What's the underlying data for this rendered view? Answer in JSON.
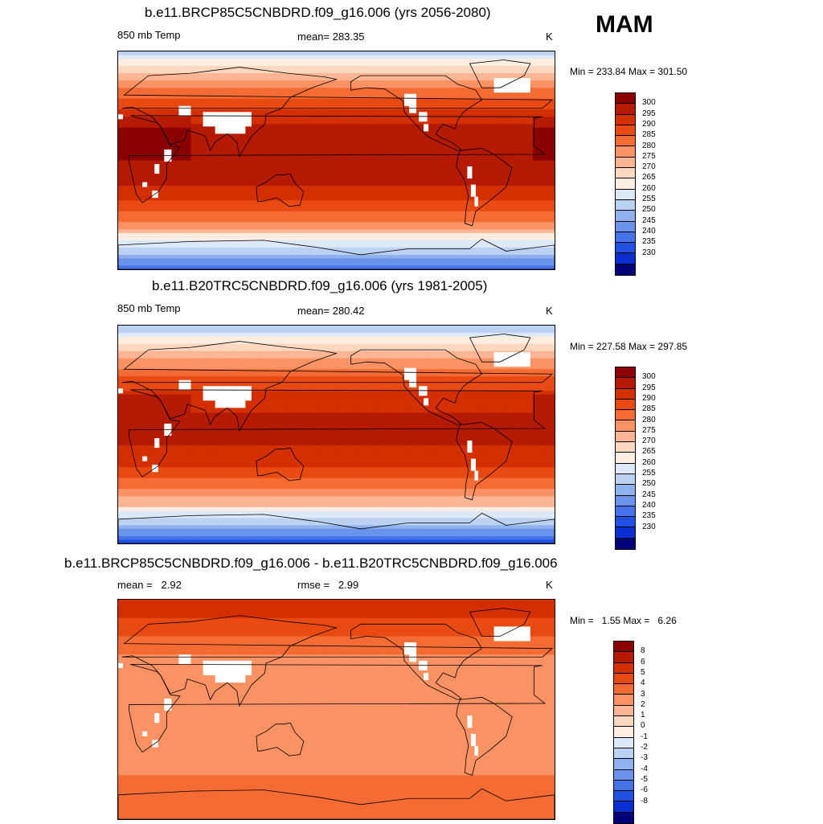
{
  "season": "MAM",
  "panels": [
    {
      "title": "b.e11.BRCP85C5CNBDRD.f09_g16.006 (yrs 2056-2080)",
      "left_label": "850 mb Temp",
      "center_label": "mean= 283.35",
      "right_label": "K",
      "minmax": "Min = 233.84 Max = 301.50",
      "scale": "abs",
      "warm_shift": 3
    },
    {
      "title": "b.e11.B20TRC5CNBDRD.f09_g16.006 (yrs 1981-2005)",
      "left_label": "850 mb Temp",
      "center_label": "mean= 280.42",
      "right_label": "K",
      "minmax": "Min = 227.58 Max = 297.85",
      "scale": "abs",
      "warm_shift": 0
    },
    {
      "title": "b.e11.BRCP85C5CNBDRD.f09_g16.006 - b.e11.B20TRC5CNBDRD.f09_g16.006",
      "left_label": "mean =   2.92",
      "center_label": "rmse =   2.99",
      "right_label": "K",
      "minmax": "Min =   1.55 Max =   6.26",
      "scale": "diff",
      "warm_shift": 0
    }
  ],
  "colorbars": {
    "abs": {
      "labels": [
        "300",
        "295",
        "290",
        "285",
        "280",
        "275",
        "270",
        "265",
        "260",
        "255",
        "250",
        "245",
        "240",
        "235",
        "230"
      ],
      "colors": [
        "#8a0000",
        "#b31a00",
        "#d42f00",
        "#e84a12",
        "#f46b34",
        "#fb9264",
        "#fdb594",
        "#fdd8c0",
        "#fdeee2",
        "#dde9f7",
        "#bcd2f2",
        "#8fb2ee",
        "#6a93ec",
        "#4672ea",
        "#2250e2",
        "#0a2fd0",
        "#00007a"
      ]
    },
    "diff": {
      "labels": [
        "8",
        "6",
        "5",
        "4",
        "3",
        "2",
        "1",
        "0",
        "-1",
        "-2",
        "-3",
        "-4",
        "-5",
        "-6",
        "-8"
      ],
      "colors": [
        "#8a0000",
        "#b31a00",
        "#d42f00",
        "#e84a12",
        "#f46b34",
        "#fb9264",
        "#fdb594",
        "#fdd8c0",
        "#fdeee2",
        "#dde9f7",
        "#bcd2f2",
        "#8fb2ee",
        "#6a93ec",
        "#4672ea",
        "#2250e2",
        "#0a2fd0",
        "#00007a"
      ]
    }
  }
}
